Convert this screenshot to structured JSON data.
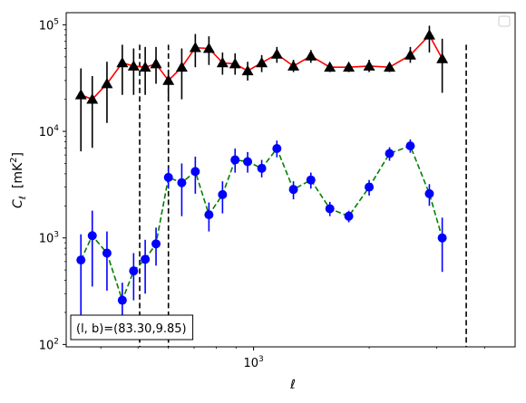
{
  "chart_data": {
    "type": "scatter",
    "title": "",
    "xlabel": "ℓ",
    "ylabel_main": "C",
    "ylabel_sub": "ℓ",
    "ylabel_unit_open": "[mK",
    "ylabel_unit_sup": "2",
    "ylabel_unit_close": "]",
    "xscale": "log",
    "yscale": "log",
    "xlim": [
      325,
      4800
    ],
    "ylim": [
      95,
      130000
    ],
    "x_ticks_major": [
      {
        "value": 1000,
        "base": "10",
        "exp": "3"
      }
    ],
    "y_ticks_major": [
      {
        "value": 100,
        "base": "10",
        "exp": "2"
      },
      {
        "value": 1000,
        "base": "10",
        "exp": "3"
      },
      {
        "value": 10000,
        "base": "10",
        "exp": "4"
      },
      {
        "value": 100000,
        "base": "10",
        "exp": "5"
      }
    ],
    "x_ticks_minor": [
      400,
      500,
      600,
      700,
      800,
      900,
      2000,
      3000,
      4000
    ],
    "y_ticks_minor": [
      200,
      300,
      400,
      500,
      600,
      700,
      800,
      900,
      2000,
      3000,
      4000,
      5000,
      6000,
      7000,
      8000,
      9000,
      20000,
      30000,
      40000,
      50000,
      60000,
      70000,
      80000,
      90000
    ],
    "legend": {
      "position": "upper right",
      "entries": []
    },
    "annotation": {
      "text": "(l, b)=(83.30,9.85)",
      "position": "lower left"
    },
    "vlines": [
      {
        "x": 505,
        "y_top": 65000,
        "style": "dashed",
        "color": "#000000"
      },
      {
        "x": 600,
        "y_top": 65000,
        "style": "dashed",
        "color": "#000000"
      },
      {
        "x": 3580,
        "y_top": 65000,
        "style": "dashed",
        "color": "#000000"
      }
    ],
    "series": [
      {
        "line_color": "#ff0000",
        "marker_color": "#000000",
        "marker": "triangle",
        "line_style": "solid",
        "points": [
          {
            "x": 355,
            "y": 22000,
            "lo": 6500,
            "hi": 39000
          },
          {
            "x": 380,
            "y": 20000,
            "lo": 7000,
            "hi": 33000
          },
          {
            "x": 415,
            "y": 28000,
            "lo": 12000,
            "hi": 45000
          },
          {
            "x": 455,
            "y": 44000,
            "lo": 22000,
            "hi": 65000
          },
          {
            "x": 487,
            "y": 41000,
            "lo": 22000,
            "hi": 60000
          },
          {
            "x": 522,
            "y": 40000,
            "lo": 22000,
            "hi": 62000
          },
          {
            "x": 557,
            "y": 43000,
            "lo": 28000,
            "hi": 62000
          },
          {
            "x": 600,
            "y": 30000,
            "lo": 20000,
            "hi": 38000
          },
          {
            "x": 650,
            "y": 40000,
            "lo": 20000,
            "hi": 60000
          },
          {
            "x": 705,
            "y": 61000,
            "lo": 40000,
            "hi": 82000
          },
          {
            "x": 765,
            "y": 60000,
            "lo": 42000,
            "hi": 78000
          },
          {
            "x": 830,
            "y": 44000,
            "lo": 34000,
            "hi": 55000
          },
          {
            "x": 895,
            "y": 43000,
            "lo": 34000,
            "hi": 54000
          },
          {
            "x": 965,
            "y": 37000,
            "lo": 30000,
            "hi": 45000
          },
          {
            "x": 1050,
            "y": 44000,
            "lo": 36000,
            "hi": 52000
          },
          {
            "x": 1150,
            "y": 53000,
            "lo": 44000,
            "hi": 62000
          },
          {
            "x": 1270,
            "y": 41000,
            "lo": 36000,
            "hi": 47000
          },
          {
            "x": 1410,
            "y": 51000,
            "lo": 44000,
            "hi": 58000
          },
          {
            "x": 1580,
            "y": 40000,
            "lo": 36000,
            "hi": 44000
          },
          {
            "x": 1770,
            "y": 40000,
            "lo": 36000,
            "hi": 44000
          },
          {
            "x": 2000,
            "y": 41000,
            "lo": 36000,
            "hi": 47000
          },
          {
            "x": 2260,
            "y": 40000,
            "lo": 36000,
            "hi": 44000
          },
          {
            "x": 2560,
            "y": 52000,
            "lo": 44000,
            "hi": 62000
          },
          {
            "x": 2870,
            "y": 80000,
            "lo": 55000,
            "hi": 98000
          },
          {
            "x": 3100,
            "y": 48000,
            "lo": 23000,
            "hi": 74000
          }
        ]
      },
      {
        "line_color": "#008000",
        "marker_color": "#0000ff",
        "marker": "circle",
        "line_style": "dashed",
        "points": [
          {
            "x": 355,
            "y": 620,
            "lo": 160,
            "hi": 1080
          },
          {
            "x": 380,
            "y": 1050,
            "lo": 350,
            "hi": 1800
          },
          {
            "x": 415,
            "y": 720,
            "lo": 320,
            "hi": 1150
          },
          {
            "x": 455,
            "y": 260,
            "lo": 140,
            "hi": 380
          },
          {
            "x": 487,
            "y": 490,
            "lo": 260,
            "hi": 720
          },
          {
            "x": 522,
            "y": 630,
            "lo": 300,
            "hi": 960
          },
          {
            "x": 557,
            "y": 880,
            "lo": 550,
            "hi": 1250
          },
          {
            "x": 600,
            "y": 3700,
            "lo": 2900,
            "hi": 4500
          },
          {
            "x": 650,
            "y": 3300,
            "lo": 1600,
            "hi": 5000
          },
          {
            "x": 705,
            "y": 4200,
            "lo": 2600,
            "hi": 5800
          },
          {
            "x": 765,
            "y": 1650,
            "lo": 1150,
            "hi": 2150
          },
          {
            "x": 830,
            "y": 2550,
            "lo": 1700,
            "hi": 3400
          },
          {
            "x": 895,
            "y": 5400,
            "lo": 4100,
            "hi": 6900
          },
          {
            "x": 965,
            "y": 5200,
            "lo": 4100,
            "hi": 6400
          },
          {
            "x": 1050,
            "y": 4500,
            "lo": 3700,
            "hi": 5400
          },
          {
            "x": 1150,
            "y": 6900,
            "lo": 5700,
            "hi": 8200
          },
          {
            "x": 1270,
            "y": 2850,
            "lo": 2300,
            "hi": 3400
          },
          {
            "x": 1410,
            "y": 3500,
            "lo": 2900,
            "hi": 4100
          },
          {
            "x": 1580,
            "y": 1880,
            "lo": 1600,
            "hi": 2180
          },
          {
            "x": 1770,
            "y": 1600,
            "lo": 1400,
            "hi": 1800
          },
          {
            "x": 2000,
            "y": 3000,
            "lo": 2500,
            "hi": 3500
          },
          {
            "x": 2260,
            "y": 6200,
            "lo": 5300,
            "hi": 7100
          },
          {
            "x": 2560,
            "y": 7300,
            "lo": 6300,
            "hi": 8400
          },
          {
            "x": 2870,
            "y": 2600,
            "lo": 2000,
            "hi": 3200
          },
          {
            "x": 3100,
            "y": 1000,
            "lo": 480,
            "hi": 1550
          }
        ]
      }
    ]
  }
}
